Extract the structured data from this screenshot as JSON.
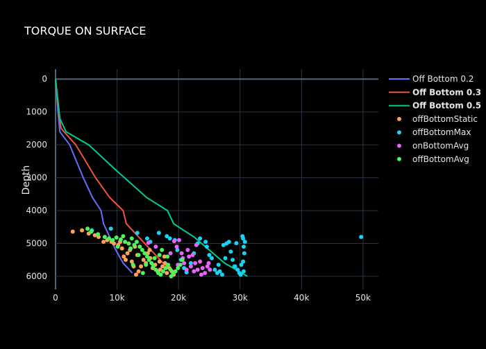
{
  "chart_data": {
    "type": "scatter",
    "title": "TORQUE ON SURFACE",
    "xlabel": "",
    "ylabel": "Depth",
    "xlim": [
      0,
      52500
    ],
    "ylim": [
      6400,
      -300
    ],
    "y_reversed": true,
    "grid": true,
    "legend_position": "top-right",
    "x_ticks": [
      {
        "v": 0,
        "label": "0"
      },
      {
        "v": 10000,
        "label": "10k"
      },
      {
        "v": 20000,
        "label": "20k"
      },
      {
        "v": 30000,
        "label": "30k"
      },
      {
        "v": 40000,
        "label": "40k"
      },
      {
        "v": 50000,
        "label": "50k"
      }
    ],
    "y_ticks": [
      {
        "v": 0,
        "label": "0"
      },
      {
        "v": 1000,
        "label": "1000"
      },
      {
        "v": 2000,
        "label": "2000"
      },
      {
        "v": 3000,
        "label": "3000"
      },
      {
        "v": 4000,
        "label": "4000"
      },
      {
        "v": 5000,
        "label": "5000"
      },
      {
        "v": 6000,
        "label": "6000"
      }
    ],
    "lines": [
      {
        "name": "Off Bottom 0.2",
        "color": "#636efa",
        "bold": false,
        "points": [
          [
            0,
            0
          ],
          [
            400,
            1000
          ],
          [
            700,
            1600
          ],
          [
            2300,
            2000
          ],
          [
            4500,
            3000
          ],
          [
            6000,
            3600
          ],
          [
            7400,
            4000
          ],
          [
            7800,
            4400
          ],
          [
            8800,
            4800
          ],
          [
            9800,
            5200
          ],
          [
            11000,
            5600
          ],
          [
            12500,
            5900
          ]
        ]
      },
      {
        "name": "Off Bottom 0.3",
        "color": "#ef553b",
        "bold": false,
        "points": [
          [
            0,
            0
          ],
          [
            500,
            1000
          ],
          [
            900,
            1500
          ],
          [
            3300,
            2000
          ],
          [
            6500,
            3000
          ],
          [
            8800,
            3600
          ],
          [
            11000,
            4000
          ],
          [
            11500,
            4400
          ],
          [
            13500,
            4800
          ],
          [
            15500,
            5200
          ],
          [
            17500,
            5600
          ],
          [
            19500,
            5950
          ]
        ]
      },
      {
        "name": "Off Bottom 0.5",
        "color": "#00cc96",
        "bold": false,
        "points": [
          [
            0,
            0
          ],
          [
            700,
            1200
          ],
          [
            1700,
            1600
          ],
          [
            5400,
            2000
          ],
          [
            10000,
            2800
          ],
          [
            14800,
            3600
          ],
          [
            18200,
            4000
          ],
          [
            19200,
            4400
          ],
          [
            22500,
            4800
          ],
          [
            25000,
            5200
          ],
          [
            27500,
            5600
          ],
          [
            31200,
            6000
          ]
        ]
      }
    ],
    "legend": [
      {
        "name": "Off Bottom 0.2",
        "kind": "line",
        "color": "#636efa",
        "bold": false
      },
      {
        "name": "Off Bottom 0.3",
        "kind": "line",
        "color": "#ef553b",
        "bold": true
      },
      {
        "name": "Off Bottom 0.5",
        "kind": "line",
        "color": "#00cc96",
        "bold": true
      },
      {
        "name": "offBottomStatic",
        "kind": "marker",
        "color": "#ffa15a",
        "bold": false
      },
      {
        "name": "offBottomMax",
        "kind": "marker",
        "color": "#19d3f3",
        "bold": false
      },
      {
        "name": "onBottomAvg",
        "kind": "marker",
        "color": "#e763fa",
        "bold": false
      },
      {
        "name": "offBottomAvg",
        "kind": "marker",
        "color": "#4cf55a",
        "bold": false
      }
    ],
    "scatter_series": [
      {
        "name": "offBottomStatic",
        "color": "#ffa15a",
        "points": [
          [
            2800,
            4640
          ],
          [
            4300,
            4600
          ],
          [
            5400,
            4700
          ],
          [
            6400,
            4750
          ],
          [
            7000,
            4800
          ],
          [
            7800,
            4950
          ],
          [
            8400,
            4900
          ],
          [
            9100,
            4950
          ],
          [
            9500,
            5000
          ],
          [
            10200,
            5050
          ],
          [
            10800,
            5150
          ],
          [
            11100,
            5400
          ],
          [
            11400,
            5500
          ],
          [
            11700,
            5300
          ],
          [
            12100,
            5200
          ],
          [
            12400,
            5550
          ],
          [
            12700,
            5700
          ],
          [
            13100,
            5950
          ],
          [
            13500,
            5850
          ],
          [
            13900,
            5700
          ],
          [
            14300,
            5500
          ],
          [
            14700,
            5600
          ],
          [
            15000,
            5300
          ],
          [
            15400,
            5450
          ],
          [
            15800,
            5750
          ],
          [
            16200,
            5650
          ],
          [
            16600,
            5850
          ],
          [
            17000,
            5800
          ],
          [
            17400,
            5700
          ],
          [
            17800,
            5600
          ],
          [
            18100,
            5900
          ],
          [
            18500,
            5750
          ],
          [
            18900,
            5850
          ],
          [
            19200,
            5950
          ],
          [
            16900,
            5550
          ],
          [
            15300,
            5200
          ],
          [
            12900,
            5100
          ],
          [
            10500,
            4950
          ],
          [
            13300,
            5350
          ],
          [
            17700,
            5400
          ]
        ]
      },
      {
        "name": "offBottomMax",
        "color": "#19d3f3",
        "points": [
          [
            5900,
            4600
          ],
          [
            9000,
            4550
          ],
          [
            13300,
            4680
          ],
          [
            14900,
            4850
          ],
          [
            15400,
            4950
          ],
          [
            16800,
            4680
          ],
          [
            18100,
            4780
          ],
          [
            18600,
            4850
          ],
          [
            19400,
            4900
          ],
          [
            19800,
            5200
          ],
          [
            20400,
            5500
          ],
          [
            20900,
            5750
          ],
          [
            21300,
            5880
          ],
          [
            22000,
            5600
          ],
          [
            22500,
            5300
          ],
          [
            23100,
            5000
          ],
          [
            23500,
            4850
          ],
          [
            24400,
            4950
          ],
          [
            25000,
            5350
          ],
          [
            25400,
            5450
          ],
          [
            25900,
            5800
          ],
          [
            26300,
            5900
          ],
          [
            26700,
            5850
          ],
          [
            27100,
            5950
          ],
          [
            27300,
            5050
          ],
          [
            27800,
            5000
          ],
          [
            28200,
            4950
          ],
          [
            28500,
            5250
          ],
          [
            28800,
            5500
          ],
          [
            29200,
            5700
          ],
          [
            29400,
            4990
          ],
          [
            29600,
            5800
          ],
          [
            29900,
            5900
          ],
          [
            30100,
            5950
          ],
          [
            30400,
            4780
          ],
          [
            30500,
            4850
          ],
          [
            30600,
            5100
          ],
          [
            30700,
            5300
          ],
          [
            30500,
            5550
          ],
          [
            30200,
            5650
          ],
          [
            30800,
            4950
          ],
          [
            30600,
            5850
          ],
          [
            29100,
            5700
          ],
          [
            27600,
            5450
          ],
          [
            26500,
            5650
          ],
          [
            24600,
            5100
          ],
          [
            49700,
            4800
          ]
        ]
      },
      {
        "name": "onBottomAvg",
        "color": "#e763fa",
        "points": [
          [
            15100,
            4980
          ],
          [
            16300,
            5100
          ],
          [
            18700,
            5300
          ],
          [
            19300,
            4930
          ],
          [
            19700,
            5100
          ],
          [
            20100,
            4900
          ],
          [
            20500,
            5300
          ],
          [
            20900,
            5600
          ],
          [
            21300,
            5800
          ],
          [
            21700,
            5400
          ],
          [
            22000,
            5700
          ],
          [
            22300,
            5350
          ],
          [
            22700,
            5600
          ],
          [
            23100,
            5800
          ],
          [
            23500,
            5550
          ],
          [
            23900,
            5750
          ],
          [
            24300,
            5900
          ],
          [
            24700,
            5700
          ],
          [
            25100,
            5800
          ],
          [
            22900,
            5050
          ],
          [
            21500,
            5200
          ],
          [
            20700,
            5450
          ],
          [
            19900,
            5650
          ],
          [
            23700,
            5950
          ],
          [
            24900,
            5600
          ],
          [
            22500,
            5850
          ]
        ]
      },
      {
        "name": "offBottomAvg",
        "color": "#4cf55a",
        "points": [
          [
            5200,
            4550
          ],
          [
            5800,
            4640
          ],
          [
            6900,
            4720
          ],
          [
            8000,
            4800
          ],
          [
            8700,
            4850
          ],
          [
            9300,
            4900
          ],
          [
            9900,
            4820
          ],
          [
            10600,
            4880
          ],
          [
            11300,
            4950
          ],
          [
            11900,
            5000
          ],
          [
            12400,
            4850
          ],
          [
            12800,
            5050
          ],
          [
            13200,
            4950
          ],
          [
            13700,
            5100
          ],
          [
            14100,
            5200
          ],
          [
            14500,
            5300
          ],
          [
            14900,
            5400
          ],
          [
            15200,
            5500
          ],
          [
            15600,
            5600
          ],
          [
            15900,
            5700
          ],
          [
            16300,
            5800
          ],
          [
            16700,
            5900
          ],
          [
            17100,
            5950
          ],
          [
            17500,
            5850
          ],
          [
            17900,
            5750
          ],
          [
            18300,
            5650
          ],
          [
            18700,
            5800
          ],
          [
            19100,
            5900
          ],
          [
            19500,
            5850
          ],
          [
            19900,
            5750
          ],
          [
            20300,
            5650
          ],
          [
            20600,
            5500
          ],
          [
            12200,
            5150
          ],
          [
            13500,
            5350
          ],
          [
            14700,
            5650
          ],
          [
            16100,
            5450
          ],
          [
            17300,
            5200
          ],
          [
            18200,
            5400
          ],
          [
            11000,
            4780
          ],
          [
            10100,
            5100
          ],
          [
            16900,
            5350
          ],
          [
            14200,
            5900
          ],
          [
            12600,
            5650
          ],
          [
            18800,
            6000
          ]
        ]
      }
    ]
  }
}
